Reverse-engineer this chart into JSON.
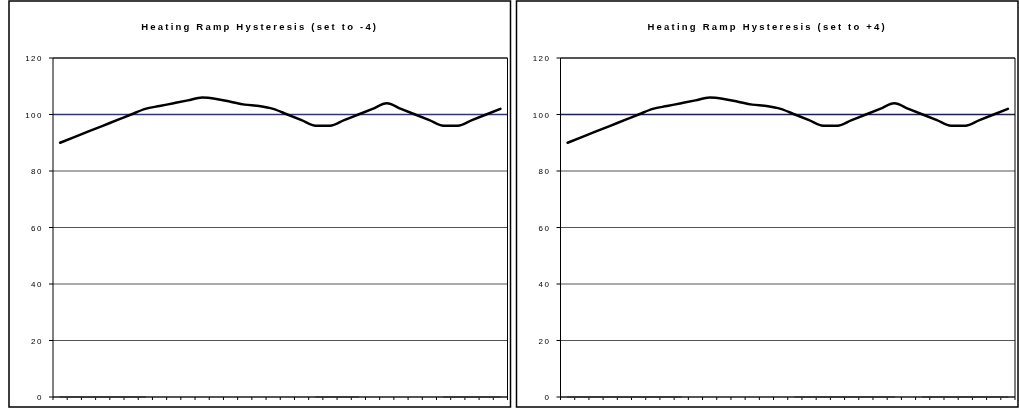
{
  "chart_data": [
    {
      "type": "line",
      "title": "Heating Ramp Hysteresis (set to -4)",
      "categories": [
        null,
        null,
        null,
        null,
        null,
        null,
        null,
        null,
        null,
        null,
        null,
        null,
        null,
        null,
        null,
        null,
        null,
        null,
        null,
        null,
        null,
        null,
        null,
        null,
        null,
        null,
        null,
        null,
        null,
        null,
        null,
        null
      ],
      "ylim": [
        0,
        120
      ],
      "yticks": [
        0,
        20,
        40,
        60,
        80,
        100,
        120
      ],
      "grid": "y",
      "marker": "none",
      "line_style": "solid",
      "ref_lines": [
        {
          "axis": "y",
          "value": 100,
          "color": "#2e3192"
        }
      ],
      "series": [
        {
          "color": "#000000",
          "values": [
            90,
            92,
            94,
            96,
            98,
            100,
            102,
            103,
            104,
            105,
            106,
            105.5,
            104.5,
            103.5,
            103,
            102,
            100,
            98,
            96,
            96,
            98,
            100,
            102,
            104,
            102,
            100,
            98,
            96,
            96,
            98,
            100,
            102
          ]
        },
        {
          "color": "#333333",
          "values": [
            0,
            0,
            0,
            0,
            0,
            0,
            0,
            null,
            null,
            null,
            null,
            null,
            null,
            null,
            null,
            null,
            null,
            null,
            0,
            0,
            0,
            0,
            null,
            null,
            null,
            null,
            null,
            0,
            0,
            0,
            0,
            0
          ]
        }
      ]
    },
    {
      "type": "line",
      "title": "Heating Ramp Hysteresis (set to +4)",
      "categories": [
        null,
        null,
        null,
        null,
        null,
        null,
        null,
        null,
        null,
        null,
        null,
        null,
        null,
        null,
        null,
        null,
        null,
        null,
        null,
        null,
        null,
        null,
        null,
        null,
        null,
        null,
        null,
        null,
        null,
        null,
        null,
        null
      ],
      "ylim": [
        0,
        120
      ],
      "yticks": [
        0,
        20,
        40,
        60,
        80,
        100,
        120
      ],
      "grid": "y",
      "marker": "none",
      "line_style": "solid",
      "ref_lines": [
        {
          "axis": "y",
          "value": 100,
          "color": "#1a1a6e"
        }
      ],
      "series": [
        {
          "color": "#000000",
          "values": [
            90,
            92,
            94,
            96,
            98,
            100,
            102,
            103,
            104,
            105,
            106,
            105.5,
            104.5,
            103.5,
            103,
            102,
            100,
            98,
            96,
            96,
            98,
            100,
            102,
            104,
            102,
            100,
            98,
            96,
            96,
            98,
            100,
            102
          ]
        },
        {
          "color": "#333333",
          "values": [
            0,
            0,
            0,
            0,
            0,
            0,
            0,
            0,
            0,
            null,
            null,
            null,
            null,
            null,
            null,
            null,
            0,
            0,
            0,
            0,
            0,
            0,
            0,
            0,
            null,
            0,
            0,
            0,
            0,
            0,
            0,
            0
          ]
        }
      ]
    }
  ]
}
